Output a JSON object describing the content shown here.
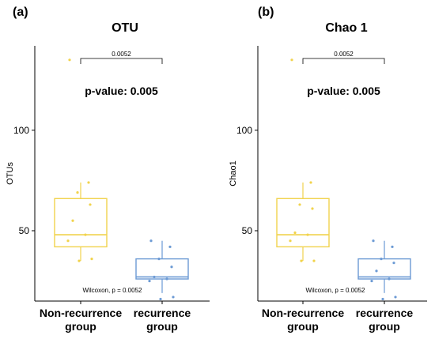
{
  "colors": {
    "non_recurrence": "#f1d34c",
    "recurrence": "#6c9ad4",
    "axis": "#000000"
  },
  "chart_data": [
    {
      "panel_label": "(a)",
      "type": "box",
      "title": "OTU",
      "ylabel": "OTUs",
      "ylim": [
        15,
        142
      ],
      "yticks": [
        "50",
        "100"
      ],
      "ytick_values": [
        50,
        100
      ],
      "categories": [
        "Non-recurrence group",
        "recurrence group"
      ],
      "category_lines": [
        [
          "Non-recurrence",
          "group"
        ],
        [
          "recurrence",
          "group"
        ]
      ],
      "boxes": [
        {
          "name": "Non-recurrence group",
          "q1": 42,
          "median": 48,
          "q3": 66,
          "whisker_low": 35,
          "whisker_high": 74,
          "points": [
            135,
            74,
            69,
            63,
            55,
            48,
            45,
            36,
            35
          ]
        },
        {
          "name": "recurrence group",
          "q1": 26,
          "median": 27,
          "q3": 36,
          "whisker_low": 19,
          "whisker_high": 45,
          "points": [
            45,
            42,
            36,
            32,
            27,
            26,
            25,
            17,
            16
          ]
        }
      ],
      "bracket_label": "0.0052",
      "pvalue_text": "p-value: 0.005",
      "test_text": "Wilcoxon, p = 0.0052"
    },
    {
      "panel_label": "(b)",
      "type": "box",
      "title": "Chao 1",
      "ylabel": "Chao1",
      "ylim": [
        15,
        142
      ],
      "yticks": [
        "50",
        "100"
      ],
      "ytick_values": [
        50,
        100
      ],
      "categories": [
        "Non-recurrence group",
        "recurrence group"
      ],
      "category_lines": [
        [
          "Non-recurrence",
          "group"
        ],
        [
          "recurrence",
          "group"
        ]
      ],
      "boxes": [
        {
          "name": "Non-recurrence group",
          "q1": 42,
          "median": 48,
          "q3": 66,
          "whisker_low": 35,
          "whisker_high": 74,
          "points": [
            135,
            74,
            63,
            61,
            49,
            48,
            45,
            35,
            35
          ]
        },
        {
          "name": "recurrence group",
          "q1": 26,
          "median": 27,
          "q3": 36,
          "whisker_low": 19,
          "whisker_high": 45,
          "points": [
            45,
            42,
            36,
            34,
            30,
            26,
            25,
            17,
            16
          ]
        }
      ],
      "bracket_label": "0.0052",
      "pvalue_text": "p-value: 0.005",
      "test_text": "Wilcoxon, p = 0.0052"
    }
  ]
}
